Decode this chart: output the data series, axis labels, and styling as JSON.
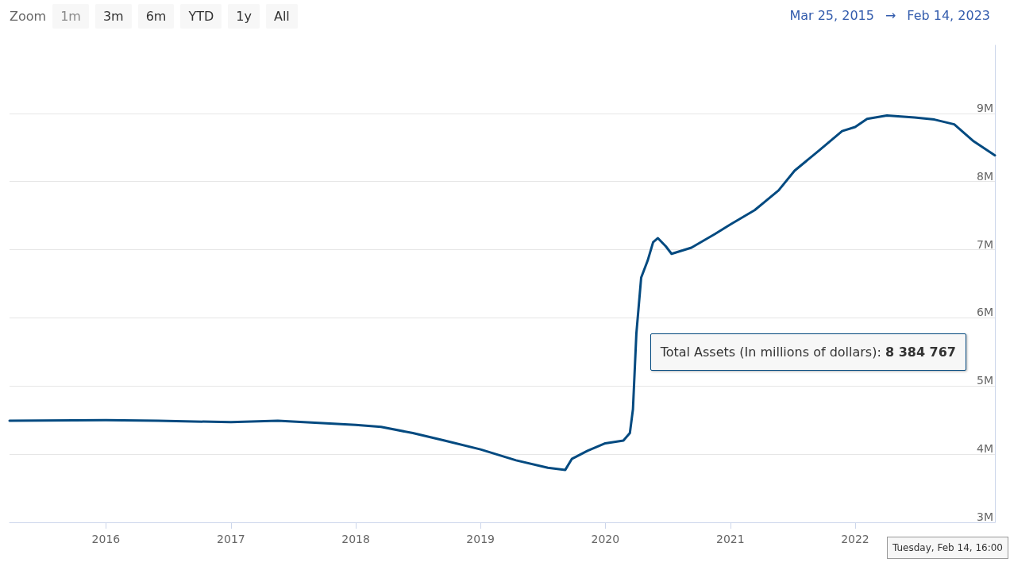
{
  "chart_data": {
    "type": "line",
    "x": [
      "2015-03-25",
      "2016-01-01",
      "2016-06-01",
      "2017-01-01",
      "2017-05-18",
      "2018-01-01",
      "2018-03-16",
      "2018-06-17",
      "2018-09-18",
      "2019-01-01",
      "2019-04-15",
      "2019-07-17",
      "2019-09-06",
      "2019-09-25",
      "2019-11-10",
      "2020-01-01",
      "2020-02-23",
      "2020-03-13",
      "2020-03-22",
      "2020-04-01",
      "2020-04-15",
      "2020-05-04",
      "2020-05-20",
      "2020-06-03",
      "2020-06-26",
      "2020-07-13",
      "2020-09-09",
      "2020-11-17",
      "2021-01-01",
      "2021-03-13",
      "2021-05-22",
      "2021-07-08",
      "2021-09-16",
      "2021-11-24",
      "2022-01-01",
      "2022-02-05",
      "2022-04-04",
      "2022-06-24",
      "2022-08-21",
      "2022-10-18",
      "2022-12-14",
      "2023-02-14"
    ],
    "series": [
      {
        "color": "#034a80",
        "values": [
          4490000,
          4500000,
          4490000,
          4470000,
          4490000,
          4430000,
          4400000,
          4310000,
          4200000,
          4070000,
          3910000,
          3800000,
          3770000,
          3930000,
          4050000,
          4160000,
          4200000,
          4310000,
          4660000,
          5770000,
          6590000,
          6840000,
          7110000,
          7170000,
          7050000,
          6940000,
          7030000,
          7230000,
          7370000,
          7580000,
          7870000,
          8160000,
          8450000,
          8740000,
          8800000,
          8920000,
          8970000,
          8940000,
          8910000,
          8840000,
          8590000,
          8384767
        ]
      }
    ],
    "xlim": [
      "2015-03-25",
      "2023-02-14"
    ],
    "xticks": [
      "2016",
      "2017",
      "2018",
      "2019",
      "2020",
      "2021",
      "2022"
    ],
    "ylim": [
      3000000,
      10000000
    ],
    "yticks": [
      {
        "value": 3000000,
        "label": "3M"
      },
      {
        "value": 4000000,
        "label": "4M"
      },
      {
        "value": 5000000,
        "label": "5M"
      },
      {
        "value": 6000000,
        "label": "6M"
      },
      {
        "value": 7000000,
        "label": "7M"
      },
      {
        "value": 8000000,
        "label": "8M"
      },
      {
        "value": 9000000,
        "label": "9M"
      }
    ],
    "grid": "y",
    "marker": "none",
    "line_style": "solid",
    "annotations": [
      "Zoom",
      "1m",
      "3m",
      "6m",
      "YTD",
      "1y",
      "All",
      "Mar 25, 2015",
      "→",
      "Feb 14, 2023",
      "Total Assets (In millions of dollars): 8 384 767",
      "Tuesday, Feb 14, 16:00"
    ]
  }
}
